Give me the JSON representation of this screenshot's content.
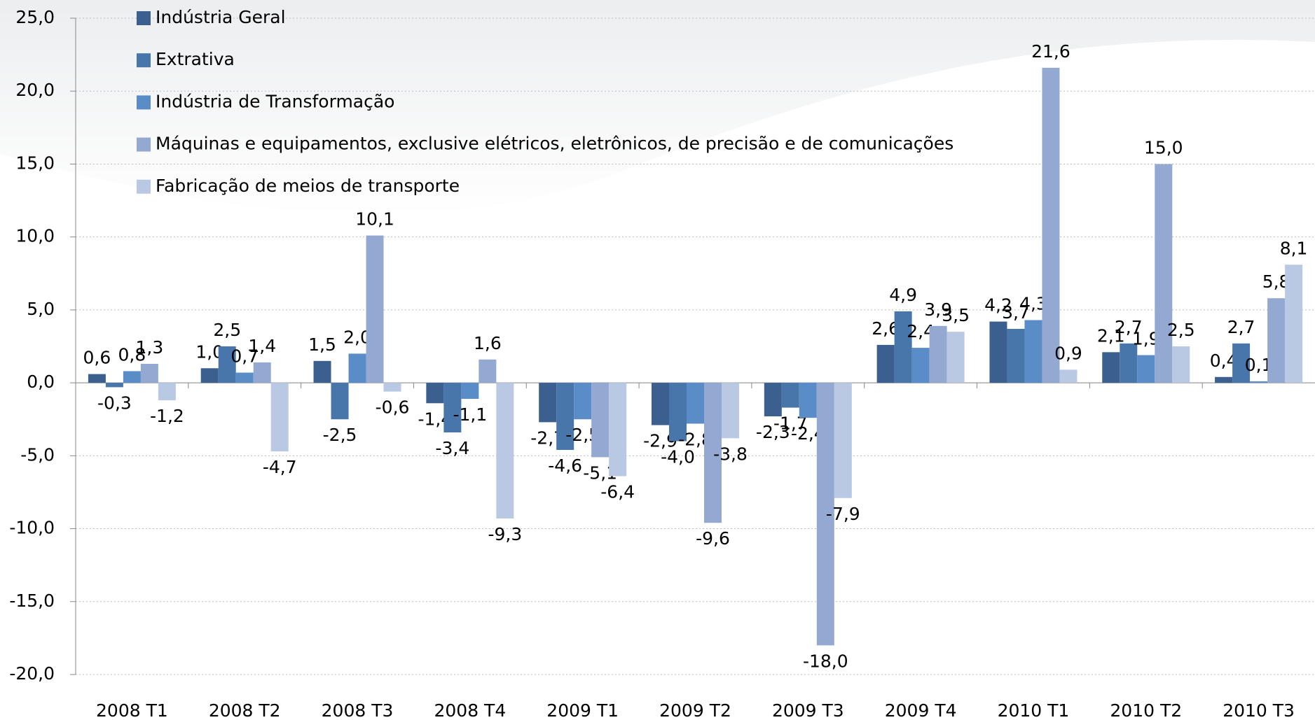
{
  "chart_data": {
    "type": "bar",
    "categories": [
      "2008 T1",
      "2008 T2",
      "2008 T3",
      "2008 T4",
      "2009 T1",
      "2009 T2",
      "2009 T3",
      "2009 T4",
      "2010 T1",
      "2010 T2",
      "2010 T3"
    ],
    "series": [
      {
        "name": "Indústria Geral",
        "color": "#3b5f8f",
        "values": [
          0.6,
          1.0,
          1.5,
          -1.4,
          -2.7,
          -2.9,
          -2.3,
          2.6,
          4.2,
          2.1,
          0.4
        ],
        "value_labels": [
          "0,6",
          "1,0",
          "1,5",
          "-1,4",
          "-2,7",
          "-2,9",
          "-2,3",
          "2,6",
          "4,2",
          "2,1",
          "0,4"
        ]
      },
      {
        "name": "Extrativa",
        "color": "#4876ab",
        "values": [
          -0.3,
          2.5,
          -2.5,
          -3.4,
          -4.6,
          -4.0,
          -1.7,
          4.9,
          3.7,
          2.7,
          2.7
        ],
        "value_labels": [
          "-0,3",
          "2,5",
          "-2,5",
          "-3,4",
          "-4,6",
          "-4,0",
          "-1,7",
          "4,9",
          "3,7",
          "2,7",
          "2,7"
        ]
      },
      {
        "name": "Indústria de Transformação",
        "color": "#5a8cc8",
        "values": [
          0.8,
          0.7,
          2.0,
          -1.1,
          -2.5,
          -2.8,
          -2.4,
          2.4,
          4.3,
          1.9,
          0.1
        ],
        "value_labels": [
          "0,8",
          "0,7",
          "2,0",
          "-1,1",
          "-2,5",
          "-2,8",
          "-2,4",
          "2,4",
          "4,3",
          "1,9",
          "0,1"
        ]
      },
      {
        "name": "Máquinas e equipamentos, exclusive elétricos, eletrônicos, de precisão e de comunicações",
        "color": "#93a9d2",
        "values": [
          1.3,
          1.4,
          10.1,
          1.6,
          -5.1,
          -9.6,
          -18.0,
          3.9,
          21.6,
          15.0,
          5.8
        ],
        "value_labels": [
          "1,3",
          "1,4",
          "10,1",
          "1,6",
          "-5,1",
          "-9,6",
          "-18,0",
          "3,9",
          "21,6",
          "15,0",
          "5,8"
        ]
      },
      {
        "name": "Fabricação de meios de transporte",
        "color": "#b9c8e3",
        "values": [
          -1.2,
          -4.7,
          -0.6,
          -9.3,
          -6.4,
          -3.8,
          -7.9,
          3.5,
          0.9,
          2.5,
          8.1
        ],
        "value_labels": [
          "-1,2",
          "-4,7",
          "-0,6",
          "-9,3",
          "-6,4",
          "-3,8",
          "-7,9",
          "3,5",
          "0,9",
          "2,5",
          "8,1"
        ]
      }
    ],
    "ylim": [
      -20,
      25
    ],
    "yticks": [
      {
        "value": -20,
        "label": "-20,0"
      },
      {
        "value": -15,
        "label": "-15,0"
      },
      {
        "value": -10,
        "label": "-10,0"
      },
      {
        "value": -5,
        "label": "-5,0"
      },
      {
        "value": 0,
        "label": "0,0"
      },
      {
        "value": 5,
        "label": "5,0"
      },
      {
        "value": 10,
        "label": "10,0"
      },
      {
        "value": 15,
        "label": "15,0"
      },
      {
        "value": 20,
        "label": "20,0"
      },
      {
        "value": 25,
        "label": "25,0"
      }
    ],
    "grid": true
  }
}
